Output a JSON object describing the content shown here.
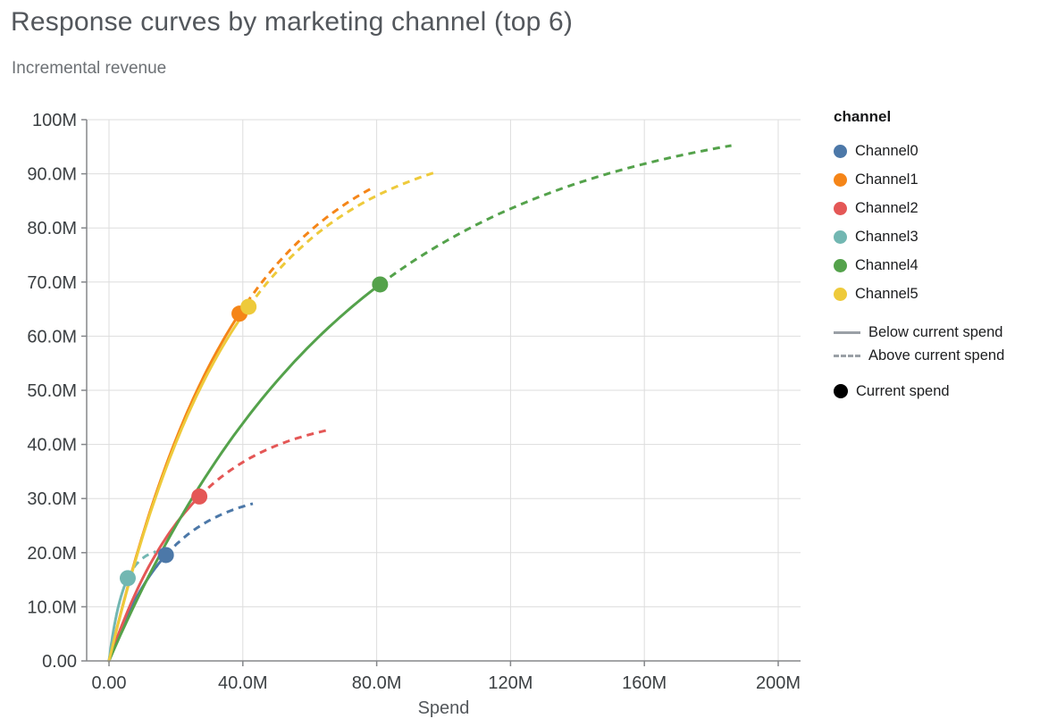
{
  "chart_data": {
    "type": "line",
    "title": "Response curves by marketing channel (top 6)",
    "subtitle": "Incremental revenue",
    "xlabel": "Spend",
    "ylabel": "Incremental revenue",
    "units": "millions",
    "curve_model": "revenue_m = ymax_m * (1 - exp(-spend_m / scale_m))",
    "x_axis": {
      "title": "Spend",
      "domain_millions": [
        0,
        200
      ],
      "ticks": [
        {
          "v": 0,
          "label": "0.00"
        },
        {
          "v": 40,
          "label": "40.0M"
        },
        {
          "v": 80,
          "label": "80.0M"
        },
        {
          "v": 120,
          "label": "120M"
        },
        {
          "v": 160,
          "label": "160M"
        },
        {
          "v": 200,
          "label": "200M"
        }
      ]
    },
    "y_axis": {
      "domain_millions": [
        0,
        100
      ],
      "ticks": [
        {
          "v": 0,
          "label": "0.00"
        },
        {
          "v": 10,
          "label": "10.0M"
        },
        {
          "v": 20,
          "label": "20.0M"
        },
        {
          "v": 30,
          "label": "30.0M"
        },
        {
          "v": 40,
          "label": "40.0M"
        },
        {
          "v": 50,
          "label": "50.0M"
        },
        {
          "v": 60,
          "label": "60.0M"
        },
        {
          "v": 70,
          "label": "70.0M"
        },
        {
          "v": 80,
          "label": "80.0M"
        },
        {
          "v": 90,
          "label": "90.0M"
        },
        {
          "v": 100,
          "label": "100M"
        }
      ]
    },
    "grid": true,
    "legend_position": "right",
    "legend": {
      "title": "channel",
      "items": [
        {
          "label": "Channel0",
          "color": "#4c78a8"
        },
        {
          "label": "Channel1",
          "color": "#f58518"
        },
        {
          "label": "Channel2",
          "color": "#e45756"
        },
        {
          "label": "Channel3",
          "color": "#72b7b2"
        },
        {
          "label": "Channel4",
          "color": "#54a24b"
        },
        {
          "label": "Channel5",
          "color": "#eeca3b"
        }
      ],
      "line_styles": [
        {
          "style": "solid",
          "label": "Below current spend"
        },
        {
          "style": "dashed",
          "label": "Above current spend"
        }
      ],
      "point": {
        "label": "Current spend",
        "color": "#000000"
      }
    },
    "series": [
      {
        "name": "Channel0",
        "color": "#4c78a8",
        "current_spend_m": 17,
        "current_revenue_m": 19.4,
        "max_spend_m": 43,
        "max_revenue_m": 29.0,
        "curve": {
          "ymax_m": 32,
          "scale_m": 18
        }
      },
      {
        "name": "Channel1",
        "color": "#f58518",
        "current_spend_m": 39,
        "current_revenue_m": 64.2,
        "max_spend_m": 79,
        "max_revenue_m": 87.5,
        "curve": {
          "ymax_m": 100,
          "scale_m": 38
        }
      },
      {
        "name": "Channel2",
        "color": "#e45756",
        "current_spend_m": 27,
        "current_revenue_m": 30.4,
        "max_spend_m": 65,
        "max_revenue_m": 42.6,
        "curve": {
          "ymax_m": 46,
          "scale_m": 25
        }
      },
      {
        "name": "Channel3",
        "color": "#72b7b2",
        "current_spend_m": 5.6,
        "current_revenue_m": 15.3,
        "max_spend_m": 14,
        "max_revenue_m": 20.2,
        "curve": {
          "ymax_m": 21,
          "scale_m": 4.3
        }
      },
      {
        "name": "Channel4",
        "color": "#54a24b",
        "current_spend_m": 81,
        "current_revenue_m": 69.6,
        "max_spend_m": 186,
        "max_revenue_m": 95.3,
        "curve": {
          "ymax_m": 103,
          "scale_m": 72
        }
      },
      {
        "name": "Channel5",
        "color": "#eeca3b",
        "current_spend_m": 41.7,
        "current_revenue_m": 65.4,
        "max_spend_m": 98,
        "max_revenue_m": 90.3,
        "curve": {
          "ymax_m": 97.5,
          "scale_m": 37.5
        }
      }
    ]
  }
}
